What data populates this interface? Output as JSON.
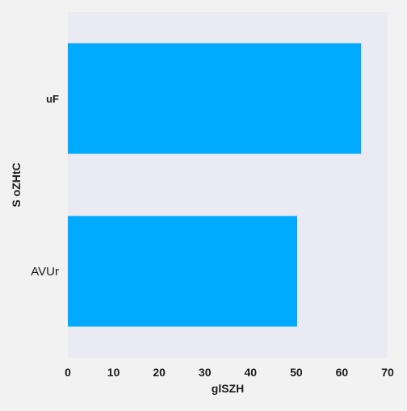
{
  "chart_data": {
    "type": "bar",
    "orientation": "horizontal",
    "categories": [
      "uF",
      "AVUr"
    ],
    "values": [
      64.2,
      50.2
    ],
    "title": "",
    "xlabel": "glSZH",
    "ylabel": "S oZHtC",
    "xlim": [
      0,
      70
    ],
    "xticks": [
      0,
      10,
      20,
      30,
      40,
      50,
      60,
      70
    ],
    "bold_category_labels": [
      "uF"
    ],
    "grid": false,
    "colors": {
      "bar": "#00aaff",
      "plot_background": "#eaeaf2",
      "page_background": "#f2f2f2"
    }
  }
}
